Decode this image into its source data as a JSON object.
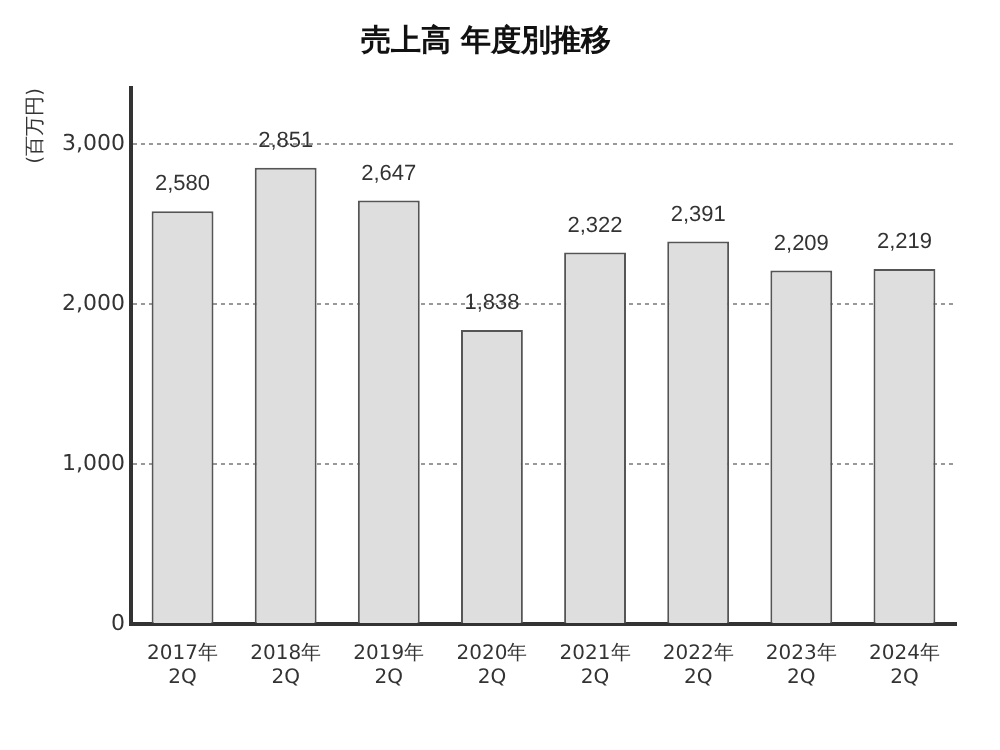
{
  "chart_data": {
    "type": "bar",
    "title": "売上高 年度別推移",
    "ylabel": "(百万円)",
    "categories": [
      "2017年\n2Q",
      "2018年\n2Q",
      "2019年\n2Q",
      "2020年\n2Q",
      "2021年\n2Q",
      "2022年\n2Q",
      "2023年\n2Q",
      "2024年\n2Q"
    ],
    "values": [
      2580,
      2851,
      2647,
      1838,
      2322,
      2391,
      2209,
      2219
    ],
    "color": "#dedede",
    "ylim": [
      0,
      3350
    ],
    "yticks": [
      {
        "value": 0,
        "label": "0"
      },
      {
        "value": 1000,
        "label": "1,000"
      },
      {
        "value": 2000,
        "label": "2,000"
      },
      {
        "value": 3000,
        "label": "3,000"
      }
    ],
    "value_labels": [
      "2,580",
      "2,851",
      "2,647",
      "1,838",
      "2,322",
      "2,391",
      "2,209",
      "2,219"
    ],
    "grid": "y",
    "legend": false
  }
}
